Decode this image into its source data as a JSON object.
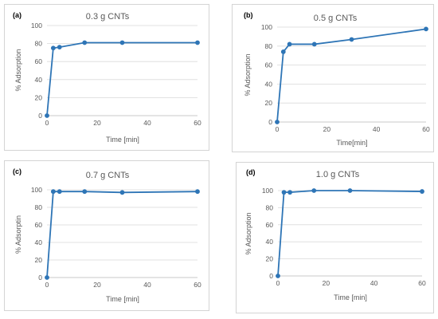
{
  "line_color": "#2E75B6",
  "grid_color": "#D9D9D9",
  "chart_data": [
    {
      "type": "line",
      "panel_label": "(a)",
      "title": "0.3 g CNTs",
      "xlabel": "Time [min]",
      "ylabel": "% Adsorption",
      "xlim": [
        0,
        60
      ],
      "ylim": [
        0,
        100
      ],
      "xticks": [
        0,
        20,
        40,
        60
      ],
      "yticks": [
        0,
        20,
        40,
        60,
        80,
        100
      ],
      "grid": true,
      "x": [
        0,
        2.5,
        5,
        15,
        30,
        60
      ],
      "y": [
        0,
        75,
        76,
        81,
        81,
        81
      ]
    },
    {
      "type": "line",
      "panel_label": "(b)",
      "title": "0.5 g CNTs",
      "xlabel": "Time[min]",
      "ylabel": "% Adsorption",
      "xlim": [
        0,
        60
      ],
      "ylim": [
        0,
        100
      ],
      "xticks": [
        0,
        20,
        40,
        60
      ],
      "yticks": [
        0,
        20,
        40,
        60,
        80,
        100
      ],
      "grid": true,
      "x": [
        0,
        2.5,
        5,
        15,
        30,
        60
      ],
      "y": [
        0,
        74,
        82,
        82,
        87,
        98
      ]
    },
    {
      "type": "line",
      "panel_label": "(c)",
      "title": "0.7 g CNTs",
      "xlabel": "Time [min]",
      "ylabel": "% Adsorptin",
      "xlim": [
        0,
        60
      ],
      "ylim": [
        0,
        100
      ],
      "xticks": [
        0,
        20,
        40,
        60
      ],
      "yticks": [
        0,
        20,
        40,
        60,
        80,
        100
      ],
      "grid": true,
      "x": [
        0,
        2.5,
        5,
        15,
        30,
        60
      ],
      "y": [
        0,
        98,
        98,
        98,
        97,
        98
      ]
    },
    {
      "type": "line",
      "panel_label": "(d)",
      "title": "1.0 g CNTs",
      "xlabel": "Time [min]",
      "ylabel": "% Adsorption",
      "xlim": [
        0,
        60
      ],
      "ylim": [
        0,
        100
      ],
      "xticks": [
        0,
        20,
        40,
        60
      ],
      "yticks": [
        0,
        20,
        40,
        60,
        80,
        100
      ],
      "grid": true,
      "x": [
        0,
        2.5,
        5,
        15,
        30,
        60
      ],
      "y": [
        0,
        98,
        98,
        100,
        100,
        99
      ]
    }
  ]
}
